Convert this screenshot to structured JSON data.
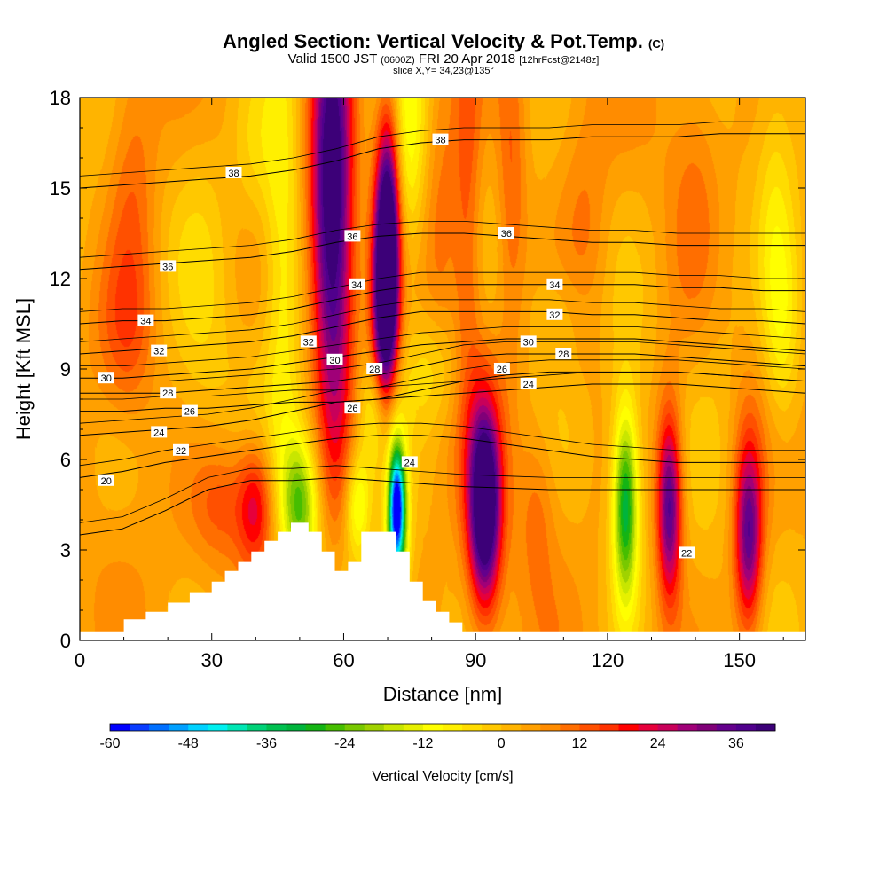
{
  "title": {
    "main": "Angled Section: Vertical Velocity & Pot.Temp.",
    "main_unit": "(C)",
    "valid_prefix": "Valid 1500 JST",
    "valid_utc": "(0600Z)",
    "valid_date": "FRI 20 Apr 2018",
    "forecast": "[12hrFcst@2148z]",
    "slice": "slice X,Y= 34,23@135°"
  },
  "chart_data": {
    "type": "heatmap",
    "xlabel": "Distance [nm]",
    "ylabel": "Height [Kft MSL]",
    "xlim": [
      0,
      165
    ],
    "ylim": [
      0,
      18
    ],
    "xticks": [
      "0",
      "30",
      "60",
      "90",
      "120",
      "150"
    ],
    "xtick_values": [
      0,
      30,
      60,
      90,
      120,
      150
    ],
    "yticks": [
      "0",
      "3",
      "6",
      "9",
      "12",
      "15",
      "18"
    ],
    "ytick_values": [
      0,
      3,
      6,
      9,
      12,
      15,
      18
    ],
    "colorbar": {
      "label": "Vertical Velocity [cm/s]",
      "tick_labels": [
        "-60",
        "-48",
        "-36",
        "-24",
        "-12",
        "0",
        "12",
        "24",
        "36"
      ],
      "tick_values": [
        -60,
        -48,
        -36,
        -24,
        -12,
        0,
        12,
        24,
        36
      ],
      "range": [
        -60,
        42
      ],
      "bin_width": 3,
      "colors": [
        "#0000ff",
        "#0a3cff",
        "#0070ff",
        "#00a0ff",
        "#00d2ff",
        "#00f0f0",
        "#00e6b4",
        "#00d278",
        "#00c050",
        "#00b43c",
        "#14b414",
        "#46be00",
        "#78c800",
        "#a0d200",
        "#c8e600",
        "#e6f000",
        "#ffff00",
        "#fff000",
        "#ffdc00",
        "#ffc800",
        "#ffb400",
        "#ffa000",
        "#ff8c00",
        "#ff6e00",
        "#ff5000",
        "#ff3200",
        "#ff0000",
        "#e6003c",
        "#c8005a",
        "#a00078",
        "#800078",
        "#64008c",
        "#50008c",
        "#3c0078"
      ]
    },
    "terrain_profile": {
      "x": [
        0,
        10,
        15,
        20,
        25,
        30,
        33,
        36,
        39,
        42,
        45,
        48,
        52,
        55,
        58,
        61,
        64,
        68,
        72,
        75,
        78,
        81,
        84,
        87,
        165
      ],
      "height": [
        0.3,
        0.7,
        0.95,
        1.25,
        1.6,
        1.95,
        2.3,
        2.6,
        2.95,
        3.3,
        3.6,
        3.9,
        3.6,
        2.95,
        2.3,
        2.6,
        3.6,
        3.6,
        2.95,
        1.95,
        1.3,
        0.95,
        0.6,
        0.3,
        0.3
      ]
    },
    "vertical_velocity_cells": [
      {
        "x": 50,
        "y": 4.5,
        "sx": 3,
        "sy": 1.6,
        "value": -28
      },
      {
        "x": 46,
        "y": 13,
        "sx": 3,
        "sy": 5,
        "value": -14
      },
      {
        "x": 40,
        "y": 16,
        "sx": 4,
        "sy": 2,
        "value": -8
      },
      {
        "x": 58,
        "y": 14,
        "sx": 3,
        "sy": 6,
        "value": 32
      },
      {
        "x": 56,
        "y": 15,
        "sx": 3,
        "sy": 4,
        "value": 20
      },
      {
        "x": 70,
        "y": 13,
        "sx": 1.8,
        "sy": 3,
        "value": 46
      },
      {
        "x": 69,
        "y": 11,
        "sx": 2,
        "sy": 3,
        "value": 34
      },
      {
        "x": 75,
        "y": 16,
        "sx": 2.5,
        "sy": 3,
        "value": -12
      },
      {
        "x": 72,
        "y": 4.5,
        "sx": 1.2,
        "sy": 1.3,
        "value": -52
      },
      {
        "x": 72,
        "y": 3.5,
        "sx": 2,
        "sy": 2,
        "value": -28
      },
      {
        "x": 68,
        "y": 7.5,
        "sx": 3,
        "sy": 1.5,
        "value": -20
      },
      {
        "x": 63,
        "y": 4.5,
        "sx": 2,
        "sy": 1.2,
        "value": -18
      },
      {
        "x": 80,
        "y": 9,
        "sx": 5,
        "sy": 1.5,
        "value": -10
      },
      {
        "x": 82,
        "y": 15,
        "sx": 2.5,
        "sy": 4,
        "value": 8
      },
      {
        "x": 92,
        "y": 4.5,
        "sx": 2.2,
        "sy": 2,
        "value": 38
      },
      {
        "x": 92,
        "y": 4.5,
        "sx": 3,
        "sy": 3,
        "value": 20
      },
      {
        "x": 88,
        "y": 14,
        "sx": 2.5,
        "sy": 5,
        "value": 14
      },
      {
        "x": 98,
        "y": 15,
        "sx": 2.5,
        "sy": 4,
        "value": 12
      },
      {
        "x": 104,
        "y": 4.5,
        "sx": 3,
        "sy": 2,
        "value": 8
      },
      {
        "x": 124,
        "y": 4.5,
        "sx": 1.8,
        "sy": 2,
        "value": -26
      },
      {
        "x": 124,
        "y": 4.5,
        "sx": 2.5,
        "sy": 3,
        "value": -14
      },
      {
        "x": 134,
        "y": 4.5,
        "sx": 1.8,
        "sy": 2,
        "value": 28
      },
      {
        "x": 134,
        "y": 4.5,
        "sx": 2.5,
        "sy": 3,
        "value": 12
      },
      {
        "x": 152,
        "y": 3.5,
        "sx": 2,
        "sy": 2,
        "value": 26
      },
      {
        "x": 152,
        "y": 3.5,
        "sx": 3,
        "sy": 3,
        "value": 12
      },
      {
        "x": 160,
        "y": 10,
        "sx": 3,
        "sy": 2.5,
        "value": -10
      },
      {
        "x": 158,
        "y": 14,
        "sx": 3,
        "sy": 4,
        "value": -8
      },
      {
        "x": 12,
        "y": 15,
        "sx": 4,
        "sy": 4,
        "value": 10
      },
      {
        "x": 10,
        "y": 10,
        "sx": 5,
        "sy": 2,
        "value": 10
      },
      {
        "x": 32,
        "y": 4.5,
        "sx": 5,
        "sy": 1.5,
        "value": 12
      },
      {
        "x": 40,
        "y": 4.5,
        "sx": 3,
        "sy": 1.5,
        "value": 22
      },
      {
        "x": 28,
        "y": 12,
        "sx": 4,
        "sy": 5,
        "value": -4
      },
      {
        "x": 110,
        "y": 11,
        "sx": 5,
        "sy": 1.2,
        "value": -4
      },
      {
        "x": 115,
        "y": 13,
        "sx": 4,
        "sy": 3,
        "value": 8
      },
      {
        "x": 140,
        "y": 15,
        "sx": 4,
        "sy": 4,
        "value": 6
      },
      {
        "x": 145,
        "y": 12,
        "sx": 5,
        "sy": 3,
        "value": -4
      }
    ],
    "theta_isolines": [
      {
        "value": 20,
        "label": true,
        "z": [
          3.5,
          3.7,
          4.3,
          5,
          5.3,
          5.3,
          5.4,
          5.3,
          5.2,
          5.1,
          5.05,
          5.0,
          5.0,
          5.0,
          5.0,
          5.0,
          5.0,
          5.0
        ]
      },
      {
        "value": 22,
        "label": true,
        "z": [
          5.4,
          5.6,
          5.9,
          6.1,
          6.3,
          6.5,
          6.7,
          6.8,
          6.8,
          6.7,
          6.5,
          6.3,
          6.1,
          6.0,
          5.9,
          5.9,
          5.9,
          5.9
        ]
      },
      {
        "value": 24,
        "label": true,
        "z": [
          6.8,
          6.9,
          7.0,
          7.1,
          7.3,
          7.6,
          7.9,
          8.0,
          8.1,
          8.2,
          8.3,
          8.4,
          8.5,
          8.5,
          8.5,
          8.4,
          8.3,
          8.2
        ]
      },
      {
        "value": 26,
        "label": true,
        "z": [
          7.6,
          7.6,
          7.7,
          7.7,
          7.8,
          7.9,
          7.9,
          8.0,
          8.3,
          8.6,
          8.8,
          8.9,
          8.9,
          8.9,
          8.9,
          8.8,
          8.7,
          8.6
        ]
      },
      {
        "value": 28,
        "label": true,
        "z": [
          8.2,
          8.2,
          8.2,
          8.3,
          8.4,
          8.5,
          8.6,
          8.8,
          9.1,
          9.4,
          9.5,
          9.5,
          9.5,
          9.5,
          9.4,
          9.3,
          9.2,
          9.1
        ]
      },
      {
        "value": 30,
        "label": true,
        "z": [
          8.7,
          8.7,
          8.8,
          8.9,
          9.0,
          9.2,
          9.4,
          9.6,
          9.8,
          9.9,
          10.0,
          10.0,
          10.0,
          10.0,
          9.9,
          9.8,
          9.7,
          9.6
        ]
      },
      {
        "value": 32,
        "label": true,
        "z": [
          9.5,
          9.6,
          9.7,
          9.8,
          9.9,
          10.1,
          10.4,
          10.7,
          10.9,
          10.9,
          10.9,
          10.9,
          10.8,
          10.8,
          10.7,
          10.6,
          10.6,
          10.5
        ]
      },
      {
        "value": 34,
        "label": true,
        "z": [
          10.5,
          10.6,
          10.6,
          10.7,
          10.8,
          11.0,
          11.3,
          11.6,
          11.8,
          11.8,
          11.8,
          11.8,
          11.8,
          11.8,
          11.7,
          11.7,
          11.6,
          11.6
        ]
      },
      {
        "value": 36,
        "label": true,
        "z": [
          12.3,
          12.4,
          12.5,
          12.6,
          12.7,
          12.9,
          13.2,
          13.4,
          13.5,
          13.5,
          13.4,
          13.3,
          13.2,
          13.2,
          13.1,
          13.1,
          13.1,
          13.1
        ]
      },
      {
        "value": 38,
        "label": true,
        "z": [
          15.0,
          15.1,
          15.2,
          15.3,
          15.4,
          15.6,
          15.9,
          16.3,
          16.5,
          16.6,
          16.6,
          16.6,
          16.7,
          16.7,
          16.7,
          16.8,
          16.8,
          16.8
        ]
      }
    ],
    "contour_labels": [
      {
        "text": "38",
        "x": 35,
        "y": 15.5
      },
      {
        "text": "38",
        "x": 82,
        "y": 16.6
      },
      {
        "text": "36",
        "x": 20,
        "y": 12.4
      },
      {
        "text": "36",
        "x": 62,
        "y": 13.4
      },
      {
        "text": "36",
        "x": 97,
        "y": 13.5
      },
      {
        "text": "34",
        "x": 15,
        "y": 10.6
      },
      {
        "text": "34",
        "x": 63,
        "y": 11.8
      },
      {
        "text": "34",
        "x": 108,
        "y": 11.8
      },
      {
        "text": "32",
        "x": 18,
        "y": 9.6
      },
      {
        "text": "32",
        "x": 52,
        "y": 9.9
      },
      {
        "text": "32",
        "x": 108,
        "y": 10.8
      },
      {
        "text": "30",
        "x": 6,
        "y": 8.7
      },
      {
        "text": "30",
        "x": 58,
        "y": 9.3
      },
      {
        "text": "30",
        "x": 102,
        "y": 9.9
      },
      {
        "text": "28",
        "x": 20,
        "y": 8.2
      },
      {
        "text": "28",
        "x": 67,
        "y": 9.0
      },
      {
        "text": "28",
        "x": 110,
        "y": 9.5
      },
      {
        "text": "26",
        "x": 25,
        "y": 7.6
      },
      {
        "text": "26",
        "x": 62,
        "y": 7.7
      },
      {
        "text": "26",
        "x": 96,
        "y": 9.0
      },
      {
        "text": "24",
        "x": 18,
        "y": 6.9
      },
      {
        "text": "24",
        "x": 75,
        "y": 5.9
      },
      {
        "text": "24",
        "x": 102,
        "y": 8.5
      },
      {
        "text": "22",
        "x": 23,
        "y": 6.3
      },
      {
        "text": "22",
        "x": 138,
        "y": 2.9
      },
      {
        "text": "20",
        "x": 6,
        "y": 5.3
      }
    ]
  }
}
